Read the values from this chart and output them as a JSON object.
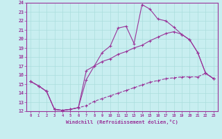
{
  "xlabel": "Windchill (Refroidissement éolien,°C)",
  "xlim": [
    -0.5,
    23.5
  ],
  "ylim": [
    12,
    24
  ],
  "xticks": [
    0,
    1,
    2,
    3,
    4,
    5,
    6,
    7,
    8,
    9,
    10,
    11,
    12,
    13,
    14,
    15,
    16,
    17,
    18,
    19,
    20,
    21,
    22,
    23
  ],
  "yticks": [
    12,
    13,
    14,
    15,
    16,
    17,
    18,
    19,
    20,
    21,
    22,
    23,
    24
  ],
  "bg_color": "#c8eef0",
  "line_color": "#993399",
  "grid_color": "#aadddd",
  "series": [
    {
      "x": [
        0,
        1,
        2,
        3,
        4,
        5,
        6,
        7,
        8,
        9,
        10,
        11,
        12,
        13,
        14,
        15,
        16,
        17,
        18,
        19,
        20,
        21,
        22,
        23
      ],
      "y": [
        15.3,
        14.8,
        14.2,
        12.2,
        12.1,
        12.2,
        12.4,
        15.5,
        17.0,
        18.5,
        19.2,
        21.2,
        21.4,
        19.5,
        23.8,
        23.3,
        22.2,
        22.0,
        21.3,
        20.5,
        19.9,
        18.5,
        16.2,
        15.6
      ],
      "style": "-",
      "marker": "+"
    },
    {
      "x": [
        0,
        1,
        2,
        3,
        4,
        5,
        6,
        7,
        8,
        9,
        10,
        11,
        12,
        13,
        14,
        15,
        16,
        17,
        18,
        19,
        20,
        21,
        22,
        23
      ],
      "y": [
        15.3,
        14.8,
        14.2,
        12.2,
        12.1,
        12.2,
        12.4,
        16.5,
        17.0,
        17.5,
        17.8,
        18.3,
        18.6,
        19.0,
        19.3,
        19.8,
        20.2,
        20.6,
        20.8,
        20.5,
        19.9,
        18.5,
        16.2,
        15.6
      ],
      "style": "-",
      "marker": "+"
    },
    {
      "x": [
        0,
        1,
        2,
        3,
        4,
        5,
        6,
        7,
        8,
        9,
        10,
        11,
        12,
        13,
        14,
        15,
        16,
        17,
        18,
        19,
        20,
        21,
        22,
        23
      ],
      "y": [
        15.3,
        14.8,
        14.2,
        12.2,
        12.1,
        12.2,
        12.4,
        12.6,
        13.1,
        13.4,
        13.7,
        14.0,
        14.3,
        14.6,
        14.9,
        15.2,
        15.4,
        15.6,
        15.7,
        15.8,
        15.8,
        15.8,
        16.2,
        15.6
      ],
      "style": "--",
      "marker": "+"
    }
  ]
}
